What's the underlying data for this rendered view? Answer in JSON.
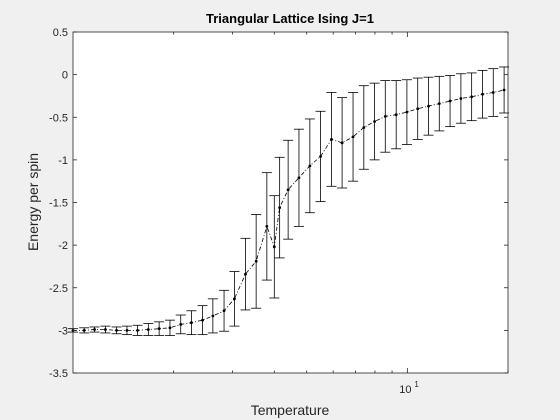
{
  "chart_data": {
    "type": "line",
    "title": "Triangular Lattice Ising J=1",
    "xlabel": "Temperature",
    "ylabel": "Energy per spin",
    "xscale": "log",
    "xlim": [
      1,
      20
    ],
    "ylim": [
      -3.5,
      0.5
    ],
    "yticks": [
      0.5,
      0,
      -0.5,
      -1,
      -1.5,
      -2,
      -2.5,
      -3,
      -3.5
    ],
    "ytick_labels": [
      "0.5",
      "0",
      "-0.5",
      "-1",
      "-1.5",
      "-2",
      "-2.5",
      "-3",
      "-3.5"
    ],
    "xticks": [
      10
    ],
    "xtick_label_base": "10",
    "xtick_label_exp": "1",
    "grid": false,
    "legend": "none",
    "line_color": "#000000",
    "line_style": "dash-dot with point markers",
    "series": [
      {
        "x": [
          1.0,
          1.08,
          1.16,
          1.25,
          1.35,
          1.45,
          1.56,
          1.68,
          1.81,
          1.95,
          2.1,
          2.26,
          2.44,
          2.62,
          2.83,
          3.04,
          3.28,
          3.53,
          3.8,
          4.0,
          4.15,
          4.4,
          4.74,
          5.11,
          5.5,
          5.93,
          6.38,
          6.88,
          7.41,
          7.98,
          8.59,
          9.26,
          9.97,
          10.74,
          11.57,
          12.46,
          13.42,
          14.46,
          15.57,
          16.78,
          18.07,
          19.47
        ],
        "y": [
          -3.0,
          -3.0,
          -2.99,
          -2.99,
          -3.0,
          -3.0,
          -3.0,
          -2.99,
          -2.98,
          -2.97,
          -2.93,
          -2.91,
          -2.88,
          -2.83,
          -2.77,
          -2.63,
          -2.34,
          -2.19,
          -1.78,
          -2.02,
          -1.56,
          -1.35,
          -1.21,
          -1.07,
          -0.96,
          -0.76,
          -0.8,
          -0.73,
          -0.62,
          -0.55,
          -0.49,
          -0.47,
          -0.44,
          -0.4,
          -0.37,
          -0.34,
          -0.31,
          -0.28,
          -0.26,
          -0.23,
          -0.21,
          -0.18
        ],
        "err": [
          0.02,
          0.03,
          0.03,
          0.04,
          0.04,
          0.05,
          0.06,
          0.07,
          0.08,
          0.09,
          0.11,
          0.14,
          0.17,
          0.2,
          0.24,
          0.32,
          0.42,
          0.55,
          0.63,
          0.6,
          0.59,
          0.58,
          0.57,
          0.55,
          0.53,
          0.55,
          0.53,
          0.52,
          0.49,
          0.45,
          0.42,
          0.4,
          0.38,
          0.36,
          0.34,
          0.32,
          0.3,
          0.29,
          0.28,
          0.28,
          0.28,
          0.27
        ]
      }
    ]
  }
}
